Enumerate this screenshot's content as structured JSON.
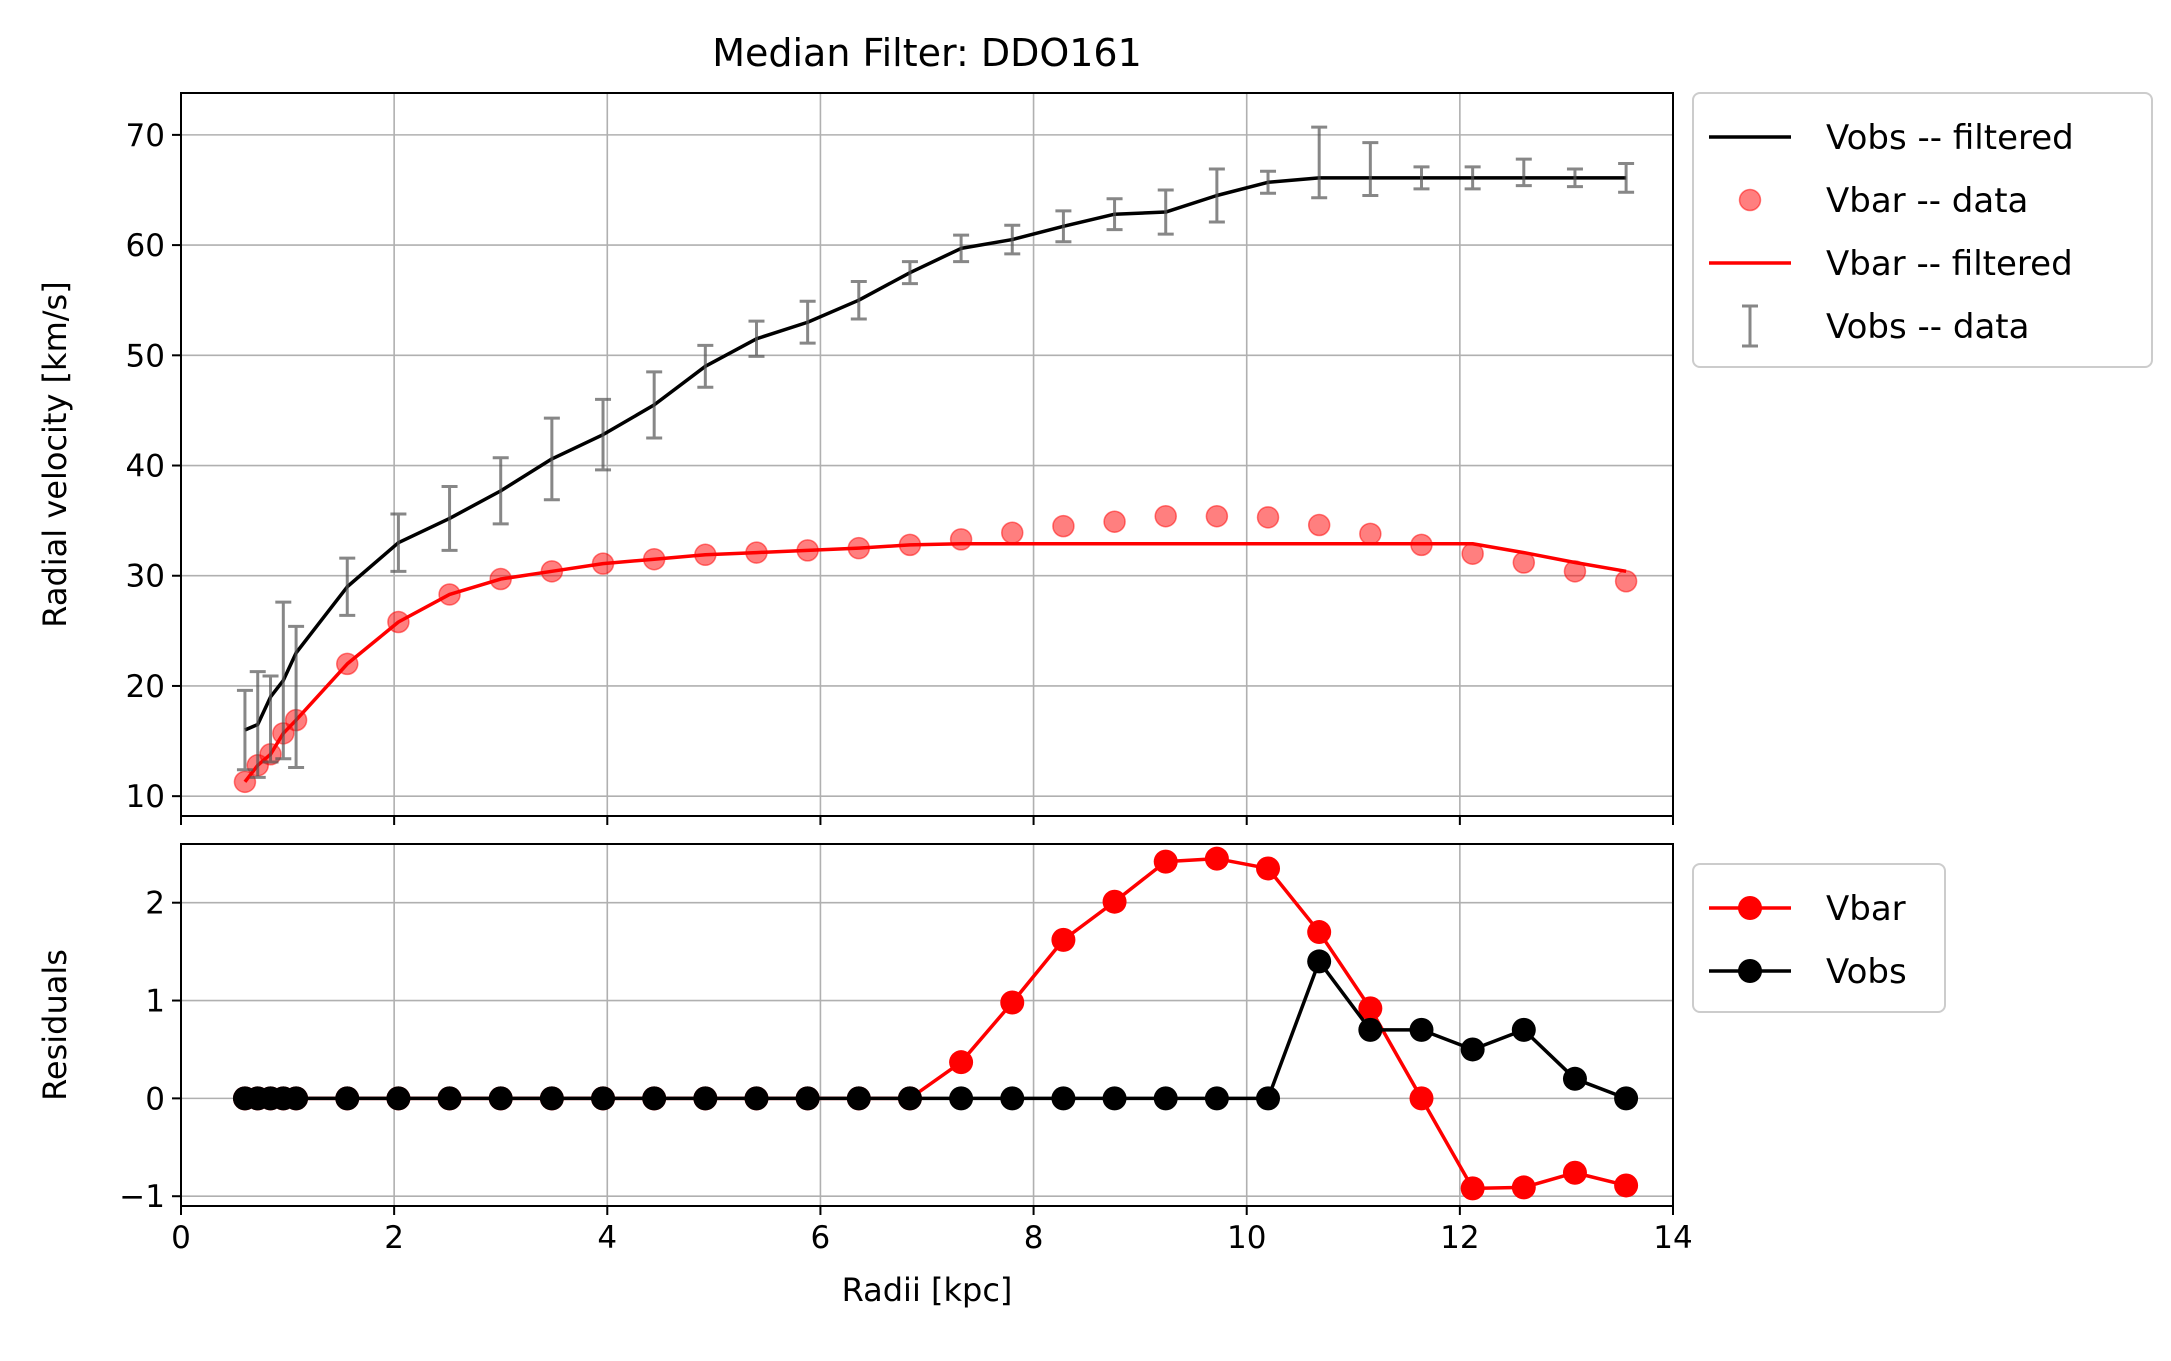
{
  "chart_data": [
    {
      "type": "line",
      "panel": "top",
      "title": "Median Filter: DDO161",
      "xlabel": "",
      "ylabel": "Radial velocity [km/s]",
      "xlim": [
        0,
        14
      ],
      "ylim": [
        8.2,
        73.8
      ],
      "xticks": [
        0,
        2,
        4,
        6,
        8,
        10,
        12,
        14
      ],
      "yticks": [
        10,
        20,
        30,
        40,
        50,
        60,
        70
      ],
      "grid": true,
      "legend_position": "outside-right-top",
      "x": [
        0.6,
        0.72,
        0.84,
        0.96,
        1.08,
        1.56,
        2.04,
        2.52,
        3.0,
        3.48,
        3.96,
        4.44,
        4.92,
        5.4,
        5.88,
        6.36,
        6.84,
        7.32,
        7.8,
        8.28,
        8.76,
        9.24,
        9.72,
        10.2,
        10.68,
        11.16,
        11.64,
        12.12,
        12.6,
        13.08,
        13.56
      ],
      "series": [
        {
          "name": "Vobs -- filtered",
          "kind": "line",
          "color": "#000000",
          "values": [
            16.0,
            16.5,
            19.0,
            20.5,
            23.0,
            29.0,
            33.0,
            35.2,
            37.7,
            40.6,
            42.8,
            45.5,
            49.0,
            51.5,
            53.0,
            55.0,
            57.5,
            59.7,
            60.5,
            61.7,
            62.8,
            63.0,
            64.5,
            65.7,
            66.1,
            66.1,
            66.1,
            66.1,
            66.1,
            66.1,
            66.1
          ]
        },
        {
          "name": "Vbar -- data",
          "kind": "scatter",
          "color": "#ff0000",
          "values": [
            11.3,
            12.8,
            13.8,
            15.7,
            16.9,
            22.0,
            25.8,
            28.3,
            29.7,
            30.4,
            31.1,
            31.5,
            31.9,
            32.1,
            32.3,
            32.5,
            32.8,
            33.3,
            33.9,
            34.5,
            34.9,
            35.4,
            35.4,
            35.3,
            34.6,
            33.8,
            32.8,
            32.0,
            31.2,
            30.4,
            29.5
          ]
        },
        {
          "name": "Vbar -- filtered",
          "kind": "line",
          "color": "#ff0000",
          "values": [
            11.3,
            12.8,
            13.8,
            15.7,
            16.9,
            22.0,
            25.8,
            28.3,
            29.7,
            30.4,
            31.1,
            31.5,
            31.9,
            32.1,
            32.3,
            32.5,
            32.8,
            32.9,
            32.9,
            32.9,
            32.9,
            32.9,
            32.9,
            32.9,
            32.9,
            32.9,
            32.9,
            32.9,
            32.1,
            31.2,
            30.4
          ]
        },
        {
          "name": "Vobs -- data",
          "kind": "errorbar",
          "color": "#555555",
          "values": [
            16.0,
            16.5,
            17.0,
            20.5,
            19.0,
            29.0,
            33.0,
            35.2,
            37.7,
            40.6,
            42.8,
            45.5,
            49.0,
            51.5,
            53.0,
            55.0,
            57.5,
            59.7,
            60.5,
            61.7,
            62.8,
            63.0,
            64.5,
            65.7,
            67.5,
            66.9,
            66.1,
            66.1,
            66.6,
            66.1,
            66.1
          ],
          "errors": [
            3.6,
            4.8,
            3.9,
            7.1,
            6.4,
            2.6,
            2.6,
            2.9,
            3.0,
            3.7,
            3.2,
            3.0,
            1.9,
            1.6,
            1.9,
            1.7,
            1.0,
            1.2,
            1.3,
            1.4,
            1.4,
            2.0,
            2.4,
            1.0,
            3.2,
            2.4,
            1.0,
            1.0,
            1.2,
            0.8,
            1.3
          ]
        }
      ]
    },
    {
      "type": "line",
      "panel": "bottom",
      "title": "",
      "xlabel": "Radii [kpc]",
      "ylabel": "Residuals",
      "xlim": [
        0,
        14
      ],
      "ylim": [
        -1.1,
        2.6
      ],
      "xticks": [
        0,
        2,
        4,
        6,
        8,
        10,
        12,
        14
      ],
      "yticks": [
        -1,
        0,
        1,
        2
      ],
      "ytick_labels": [
        "−1",
        "0",
        "1",
        "2"
      ],
      "grid": true,
      "legend_position": "outside-right-top",
      "x": [
        0.6,
        0.72,
        0.84,
        0.96,
        1.08,
        1.56,
        2.04,
        2.52,
        3.0,
        3.48,
        3.96,
        4.44,
        4.92,
        5.4,
        5.88,
        6.36,
        6.84,
        7.32,
        7.8,
        8.28,
        8.76,
        9.24,
        9.72,
        10.2,
        10.68,
        11.16,
        11.64,
        12.12,
        12.6,
        13.08,
        13.56
      ],
      "series": [
        {
          "name": "Vbar",
          "kind": "line-marker",
          "color": "#ff0000",
          "values": [
            0,
            0,
            0,
            0,
            0,
            0,
            0,
            0,
            0,
            0,
            0,
            0,
            0,
            0,
            0,
            0,
            0,
            0.37,
            0.98,
            1.62,
            2.01,
            2.42,
            2.45,
            2.35,
            1.7,
            0.92,
            0.0,
            -0.92,
            -0.91,
            -0.76,
            -0.89
          ]
        },
        {
          "name": "Vobs",
          "kind": "line-marker",
          "color": "#000000",
          "values": [
            0,
            0,
            0,
            0,
            0,
            0,
            0,
            0,
            0,
            0,
            0,
            0,
            0,
            0,
            0,
            0,
            0,
            0,
            0,
            0,
            0,
            0,
            0,
            0,
            1.4,
            0.7,
            0.7,
            0.5,
            0.7,
            0.2,
            0.0
          ]
        }
      ]
    }
  ]
}
